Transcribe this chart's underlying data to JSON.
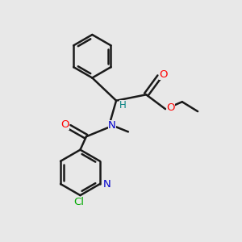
{
  "bg_color": "#e8e8e8",
  "bond_color": "#1a1a1a",
  "bond_width": 1.8,
  "O_color": "#ff0000",
  "N_color": "#0000cc",
  "Cl_color": "#00aa00",
  "H_color": "#008080",
  "figsize": [
    3.0,
    3.0
  ],
  "dpi": 100,
  "xlim": [
    0,
    10
  ],
  "ylim": [
    0,
    10
  ]
}
